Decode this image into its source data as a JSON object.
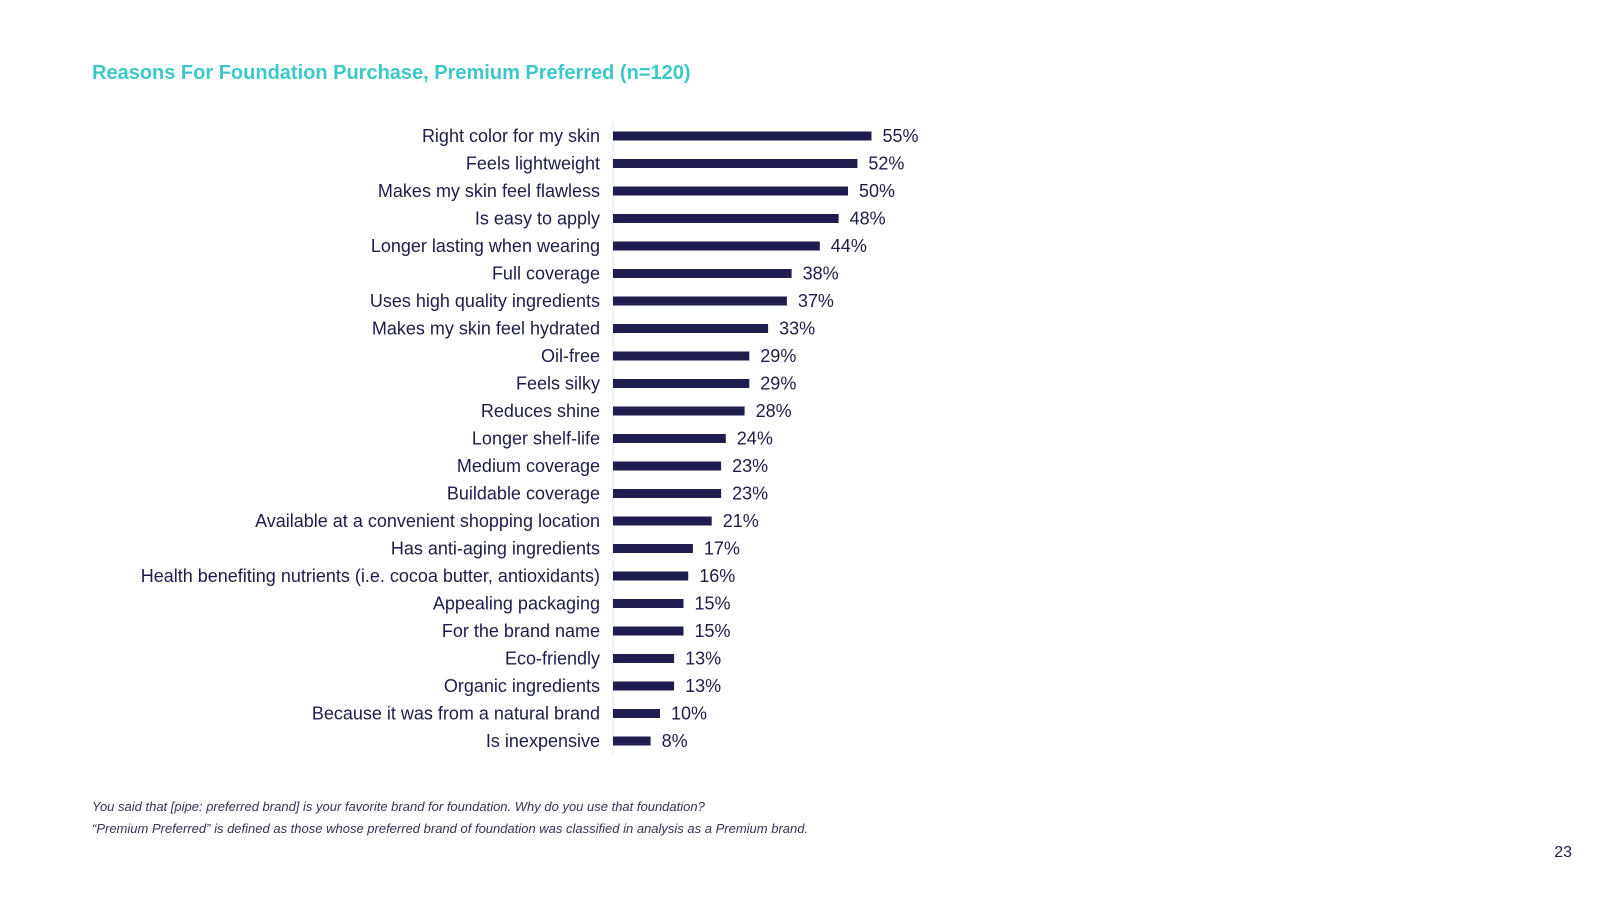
{
  "title": "Reasons For Foundation Purchase, Premium Preferred (n=120)",
  "chart_data": {
    "type": "bar",
    "orientation": "horizontal",
    "title": "Reasons For Foundation Purchase, Premium Preferred (n=120)",
    "xlabel": "",
    "ylabel": "",
    "xlim": [
      0,
      60
    ],
    "grid": false,
    "legend": "none",
    "bar_color": "#1f1d4e",
    "label_color": "#1d1d4a",
    "value_suffix": "%",
    "categories": [
      "Right color for my skin",
      "Feels lightweight",
      "Makes my skin feel flawless",
      "Is easy to apply",
      "Longer lasting when wearing",
      "Full coverage",
      "Uses high quality ingredients",
      "Makes my skin feel hydrated",
      "Oil-free",
      "Feels silky",
      "Reduces shine",
      "Longer shelf-life",
      "Medium coverage",
      "Buildable coverage",
      "Available at a convenient shopping location",
      "Has anti-aging ingredients",
      "Health benefiting nutrients (i.e. cocoa butter, antioxidants)",
      "Appealing packaging",
      "For the brand name",
      "Eco-friendly",
      "Organic ingredients",
      "Because it was from a natural brand",
      "Is inexpensive"
    ],
    "values": [
      55,
      52,
      50,
      48,
      44,
      38,
      37,
      33,
      29,
      29,
      28,
      24,
      23,
      23,
      21,
      17,
      16,
      15,
      15,
      13,
      13,
      10,
      8
    ],
    "value_labels": [
      "55%",
      "52%",
      "50%",
      "48%",
      "44%",
      "38%",
      "37%",
      "33%",
      "29%",
      "29%",
      "28%",
      "24%",
      "23%",
      "23%",
      "21%",
      "17%",
      "16%",
      "15%",
      "15%",
      "13%",
      "13%",
      "10%",
      "8%"
    ]
  },
  "notes": {
    "question": "You said that [pipe: preferred brand] is your favorite brand for foundation. Why do you use that foundation?",
    "definition": "“Premium Preferred” is defined as those whose preferred brand of foundation was classified in analysis as a Premium brand."
  },
  "page_number": "23"
}
